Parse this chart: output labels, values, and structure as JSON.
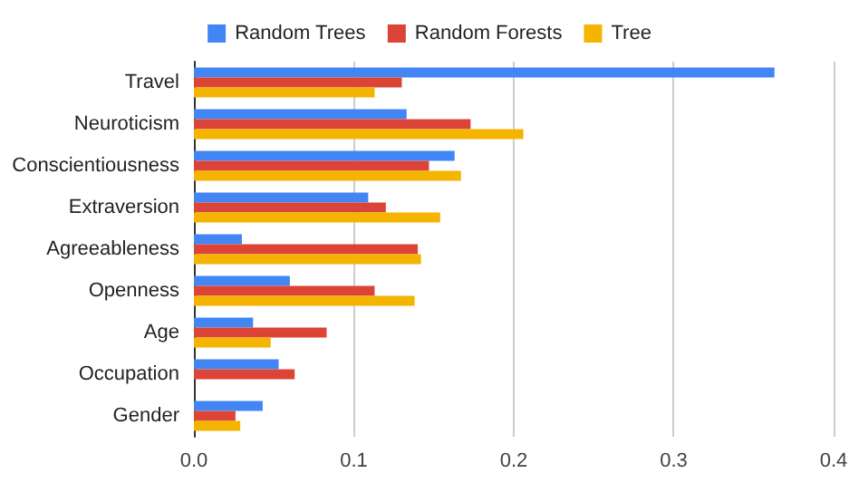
{
  "chart_data": {
    "type": "bar",
    "orientation": "horizontal",
    "categories": [
      "Travel",
      "Neuroticism",
      "Conscientiousness",
      "Extraversion",
      "Agreeableness",
      "Openness",
      "Age",
      "Occupation",
      "Gender"
    ],
    "series": [
      {
        "name": "Random Trees",
        "color": "#4285f4",
        "values": [
          0.363,
          0.133,
          0.163,
          0.109,
          0.03,
          0.06,
          0.037,
          0.053,
          0.043
        ]
      },
      {
        "name": "Random Forests",
        "color": "#db4437",
        "values": [
          0.13,
          0.173,
          0.147,
          0.12,
          0.14,
          0.113,
          0.083,
          0.063,
          0.026
        ]
      },
      {
        "name": "Tree",
        "color": "#f4b400",
        "values": [
          0.113,
          0.206,
          0.167,
          0.154,
          0.142,
          0.138,
          0.048,
          null,
          0.029
        ]
      }
    ],
    "xlim": [
      0,
      0.4
    ],
    "xticks": [
      {
        "value": 0,
        "label": "0.0"
      },
      0.1,
      0.2,
      0.3,
      0.4
    ],
    "grid": "x",
    "legend": "top"
  }
}
